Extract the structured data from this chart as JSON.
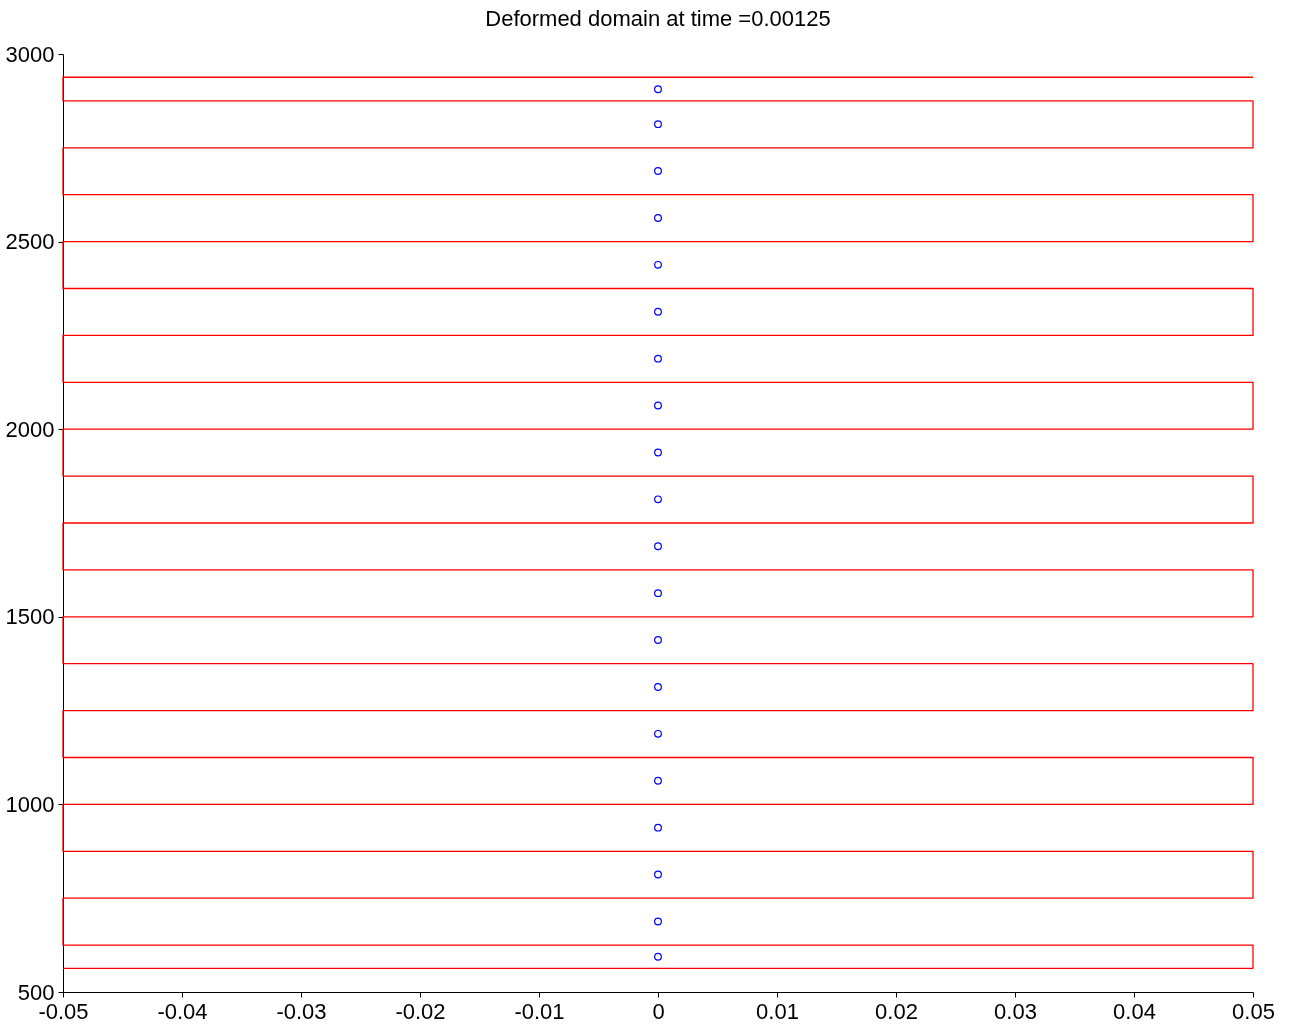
{
  "chart_data": {
    "type": "line",
    "title": "Deformed domain at time =0.00125",
    "xlim": [
      -0.05,
      0.05
    ],
    "xticks": [
      -0.05,
      -0.04,
      -0.03,
      -0.02,
      -0.01,
      0,
      0.01,
      0.02,
      0.03,
      0.04,
      0.05
    ],
    "ylim": [
      500,
      3000
    ],
    "yticks": [
      500,
      1000,
      1500,
      2000,
      2500,
      3000
    ],
    "grid": false,
    "legend": false,
    "series": [
      {
        "color": "#ff0000",
        "line_style": "solid",
        "marker": "none",
        "x": [
          -0.05,
          0.05,
          0.05,
          -0.05,
          -0.05,
          0.05,
          0.05,
          -0.05,
          -0.05,
          0.05,
          0.05,
          -0.05,
          -0.05,
          0.05,
          0.05,
          -0.05,
          -0.05,
          0.05,
          0.05,
          -0.05,
          -0.05,
          0.05,
          0.05,
          -0.05,
          -0.05,
          0.05,
          0.05,
          -0.05,
          -0.05,
          0.05,
          0.05,
          -0.05,
          -0.05,
          0.05,
          0.05,
          -0.05,
          -0.05,
          0.05,
          0.05,
          -0.05,
          -0.05,
          0.05
        ],
        "values": [
          563,
          563,
          625,
          625,
          750,
          750,
          875,
          875,
          1000,
          1000,
          1125,
          1125,
          1250,
          1250,
          1375,
          1375,
          1500,
          1500,
          1625,
          1625,
          1750,
          1750,
          1875,
          1875,
          2000,
          2000,
          2125,
          2125,
          2250,
          2250,
          2375,
          2375,
          2500,
          2500,
          2625,
          2625,
          2750,
          2750,
          2875,
          2875,
          2938,
          2938
        ]
      },
      {
        "type": "scatter",
        "color": "#0000ff",
        "marker": "circle",
        "x": [
          0,
          0,
          0,
          0,
          0,
          0,
          0,
          0,
          0,
          0,
          0,
          0,
          0,
          0,
          0,
          0,
          0,
          0,
          0,
          0
        ],
        "values": [
          594,
          688,
          813,
          938,
          1063,
          1188,
          1313,
          1438,
          1563,
          1688,
          1813,
          1938,
          2063,
          2188,
          2313,
          2438,
          2563,
          2688,
          2813,
          2906
        ]
      }
    ]
  }
}
